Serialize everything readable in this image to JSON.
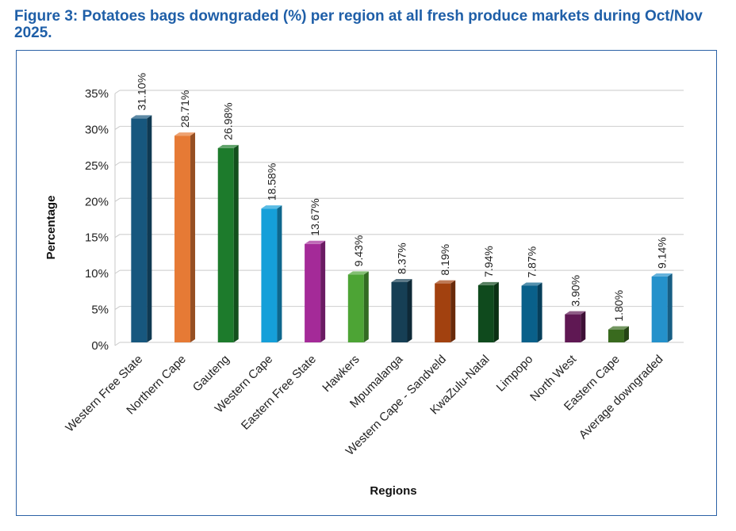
{
  "figure": {
    "title": "Figure 3: Potatoes bags downgraded (%) per region at all fresh produce markets during Oct/Nov 2025."
  },
  "chart_data": {
    "type": "bar",
    "title": "Figure 3: Potatoes bags downgraded (%) per region at all fresh produce markets during Oct/Nov 2025.",
    "xlabel": "Regions",
    "ylabel": "Percentage",
    "ylim": [
      0,
      35
    ],
    "yticks": [
      0,
      5,
      10,
      15,
      20,
      25,
      30,
      35
    ],
    "ytick_labels": [
      "0%",
      "5%",
      "10%",
      "15%",
      "20%",
      "25%",
      "30%",
      "35%"
    ],
    "grid": true,
    "categories": [
      "Western Free State",
      "Northern Cape",
      "Gauteng",
      "Western Cape",
      "Eastern Free State",
      "Hawkers",
      "Mpumalanga",
      "Western Cape - Sandveld",
      "KwaZulu-Natal",
      "Limpopo",
      "North West",
      "Eastern Cape",
      "Average downgraded"
    ],
    "values": [
      31.1,
      28.71,
      26.98,
      18.58,
      13.67,
      9.43,
      8.37,
      8.19,
      7.94,
      7.87,
      3.9,
      1.8,
      9.14
    ],
    "value_labels": [
      "31.10%",
      "28.71%",
      "26.98%",
      "18.58%",
      "13.67%",
      "9.43%",
      "8.37%",
      "8.19%",
      "7.94%",
      "7.87%",
      "3.90%",
      "1.80%",
      "9.14%"
    ],
    "colors": [
      "#17577e",
      "#e67a35",
      "#1d7b2c",
      "#159fd9",
      "#a42a98",
      "#4da435",
      "#163f55",
      "#a2410f",
      "#0f4a1d",
      "#09608a",
      "#5f1853",
      "#396a1e",
      "#2491cb"
    ]
  }
}
